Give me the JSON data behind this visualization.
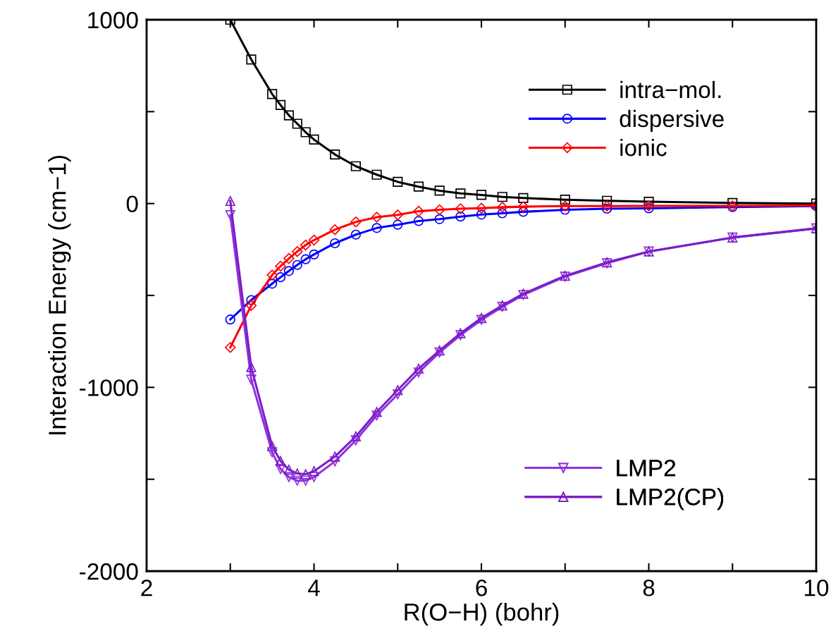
{
  "chart_data": {
    "type": "line",
    "xlabel": "R(O−H) (bohr)",
    "ylabel": "Interaction Energy (cm−1)",
    "x": [
      3,
      3.25,
      3.5,
      3.6,
      3.7,
      3.8,
      3.9,
      4.0,
      4.25,
      4.5,
      4.75,
      5,
      5.25,
      5.5,
      5.75,
      6,
      6.25,
      6.5,
      7,
      7.5,
      8,
      9,
      10
    ],
    "xlim": [
      2,
      10
    ],
    "ylim": [
      -2000,
      1000
    ],
    "xticks": [
      2,
      {
        "value": 3,
        "label": null
      },
      4,
      {
        "value": 5,
        "label": null
      },
      6,
      {
        "value": 7,
        "label": null
      },
      8,
      {
        "value": 9,
        "label": null
      },
      10
    ],
    "yticks": [
      -2000,
      {
        "value": -1500,
        "label": null
      },
      -1000,
      {
        "value": -500,
        "label": null
      },
      0,
      {
        "value": 500,
        "label": null
      },
      1000
    ],
    "grid": false,
    "legend": [
      "top right",
      "bottom right"
    ],
    "line_style": "solid",
    "series": [
      {
        "name": "intra−mol.",
        "color": "#000000",
        "marker": "square",
        "values": [
          1000,
          784,
          596,
          536,
          480,
          434,
          388,
          348,
          267,
          203,
          157,
          118,
          92,
          70,
          55,
          47,
          36,
          30,
          21,
          15,
          10,
          3,
          0
        ]
      },
      {
        "name": "dispersive",
        "color": "#0000ff",
        "marker": "circle",
        "values": [
          -631,
          -525,
          -436,
          -401,
          -367,
          -334,
          -303,
          -277,
          -216,
          -169,
          -133,
          -115,
          -95,
          -85,
          -71,
          -60,
          -53,
          -45,
          -34,
          -28,
          -26,
          -19,
          -14
        ]
      },
      {
        "name": "ionic",
        "color": "#ff0000",
        "marker": "diamond",
        "values": [
          -783,
          -555,
          -389,
          -341,
          -299,
          -261,
          -226,
          -199,
          -142,
          -100,
          -74,
          -62,
          -42,
          -34,
          -28,
          -25,
          -20,
          -17,
          -14,
          -14,
          -13,
          -13,
          -11
        ]
      },
      {
        "name": "LMP2",
        "color": "#9430e0",
        "marker": "triangle_down",
        "values": [
          -63,
          -958,
          -1354,
          -1444,
          -1488,
          -1508,
          -1508,
          -1488,
          -1403,
          -1288,
          -1153,
          -1038,
          -919,
          -810,
          -716,
          -633,
          -562,
          -497,
          -398,
          -325,
          -261,
          -185,
          -135
        ]
      },
      {
        "name": "LMP2(CP)",
        "color": "#7a1fc8",
        "marker": "triangle",
        "values": [
          14,
          -890,
          -1320,
          -1401,
          -1448,
          -1469,
          -1473,
          -1456,
          -1377,
          -1267,
          -1134,
          -1015,
          -898,
          -800,
          -706,
          -623,
          -554,
          -491,
          -393,
          -320,
          -261,
          -185,
          -135
        ]
      }
    ]
  }
}
